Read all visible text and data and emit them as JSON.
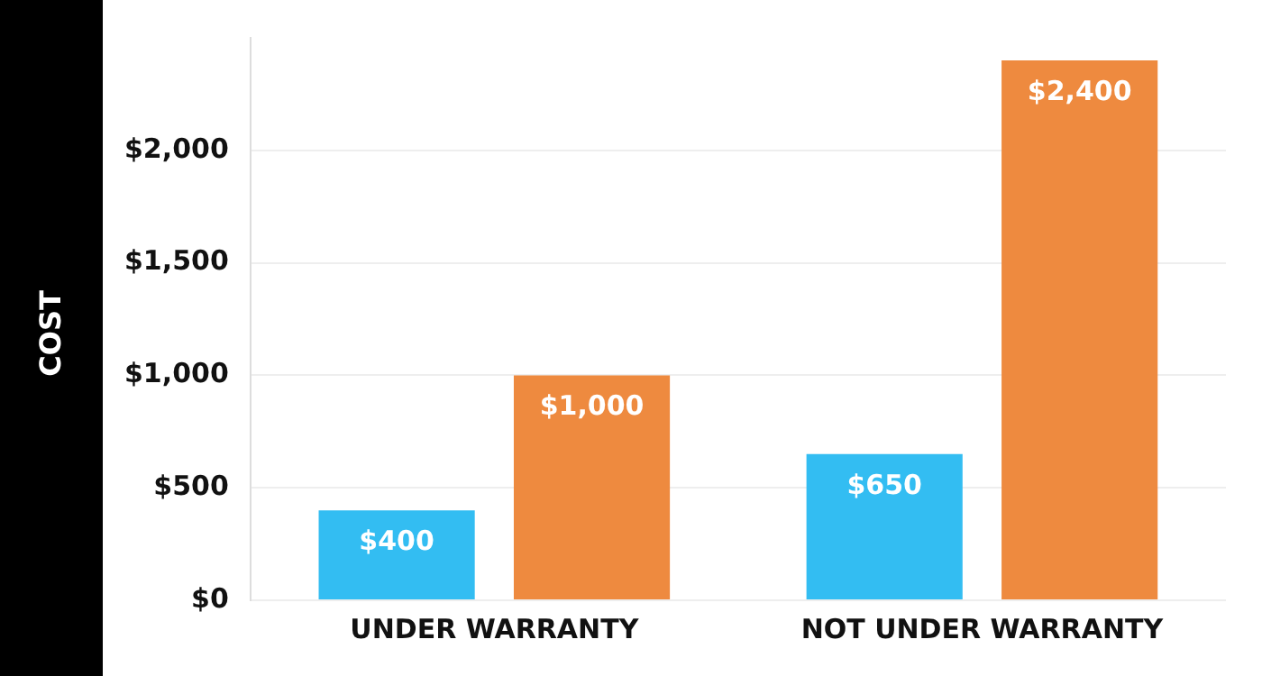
{
  "chart_data": {
    "type": "bar",
    "ylabel": "COST",
    "categories": [
      "UNDER WARRANTY",
      "NOT UNDER WARRANTY"
    ],
    "series": [
      {
        "color": "#33bdf2",
        "values": [
          400,
          650
        ]
      },
      {
        "color": "#ee8a3f",
        "values": [
          1000,
          2400
        ]
      }
    ],
    "ylim": [
      0,
      2500
    ],
    "yticks": [
      {
        "value": 0,
        "label": "$0"
      },
      {
        "value": 500,
        "label": "$500"
      },
      {
        "value": 1000,
        "label": "$1,000"
      },
      {
        "value": 1500,
        "label": "$1,500"
      },
      {
        "value": 2000,
        "label": "$2,000"
      }
    ],
    "value_labels": [
      [
        "$400",
        "$650"
      ],
      [
        "$1,000",
        "$2,400"
      ]
    ],
    "grid": "y",
    "legend": false
  }
}
